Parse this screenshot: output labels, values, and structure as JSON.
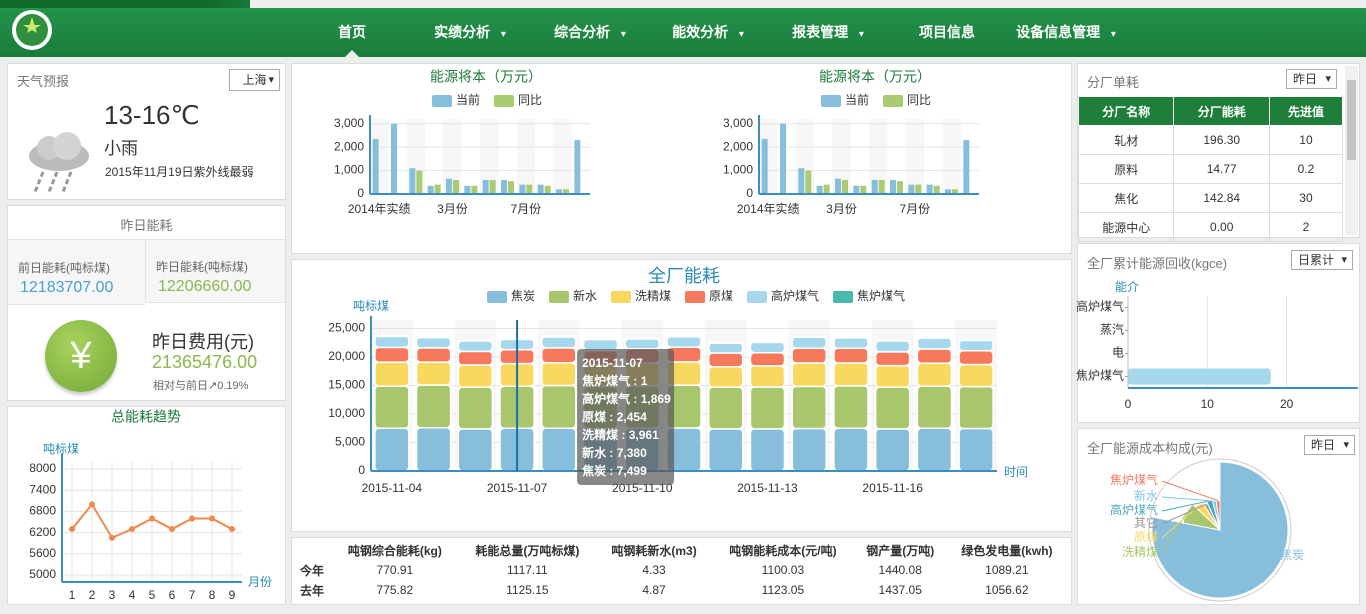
{
  "nav": {
    "items": [
      "首页",
      "实绩分析",
      "综合分析",
      "能效分析",
      "报表管理",
      "项目信息",
      "设备信息管理"
    ],
    "dropdown": [
      false,
      true,
      true,
      true,
      true,
      false,
      true
    ],
    "active": 0
  },
  "weather": {
    "title": "天气预报",
    "city": "上海",
    "temperature": "13-16℃",
    "condition": "小雨",
    "date": "2015年11月19日紫外线最弱"
  },
  "yesterday": {
    "title": "昨日能耗",
    "prev_label": "前日能耗(吨标煤)",
    "prev_value": "12183707.00",
    "curr_label": "昨日能耗(吨标煤)",
    "curr_value": "12206660.00",
    "icon": "¥",
    "cost_label": "昨日费用(元)",
    "cost_value": "21365476.00",
    "change": "相对与前日↗0.19%"
  },
  "summary_table": {
    "headers": [
      "吨钢综合能耗(kg)",
      "耗能总量(万吨标煤)",
      "吨钢耗新水(m3)",
      "吨钢能耗成本(元/吨)",
      "钢产量(万吨)",
      "绿色发电量(kwh)"
    ],
    "rows": [
      {
        "label": "今年",
        "cells": [
          "770.91",
          "1117.11",
          "4.33",
          "1100.03",
          "1440.08",
          "1089.21"
        ]
      },
      {
        "label": "去年",
        "cells": [
          "775.82",
          "1125.15",
          "4.87",
          "1123.05",
          "1437.05",
          "1056.62"
        ]
      }
    ]
  },
  "factory": {
    "title": "分厂单耗",
    "select": "昨日",
    "headers": [
      "分厂名称",
      "分厂能耗",
      "先进值"
    ],
    "rows": [
      [
        "轧材",
        "196.30",
        "10"
      ],
      [
        "原料",
        "14.77",
        "0.2"
      ],
      [
        "焦化",
        "142.84",
        "30"
      ],
      [
        "能源中心",
        "0.00",
        "2"
      ]
    ]
  },
  "recovery": {
    "title": "全厂累计能源回收(kgce)",
    "select": "日累计"
  },
  "cost_mix": {
    "title": "全厂能源成本构成(元)",
    "select": "昨日"
  },
  "chart_data": [
    {
      "type": "line",
      "title": "总能耗趋势",
      "y_label": "吨标煤",
      "x_label": "月份",
      "x": [
        1,
        2,
        3,
        4,
        5,
        6,
        7,
        8,
        9
      ],
      "values": [
        6300,
        7000,
        6050,
        6300,
        6600,
        6300,
        6600,
        6600,
        6300
      ],
      "color": "#ef8a4f",
      "xlim": [
        0.5,
        9.5
      ],
      "xticks": [
        1,
        2,
        3,
        4,
        5,
        6,
        7,
        8,
        9
      ],
      "ylim": [
        4800,
        8200
      ],
      "yticks": [
        5000,
        5600,
        6200,
        6800,
        7400,
        8000
      ],
      "grid": true
    },
    {
      "type": "bar",
      "title": "能源将本（万元）",
      "categories": [
        "2014年实绩",
        null,
        null,
        null,
        "3月份",
        null,
        null,
        null,
        "7月份",
        null,
        null,
        null
      ],
      "series": [
        {
          "name": "当前",
          "color": "#86bedb",
          "values": [
            2350,
            3000,
            1100,
            350,
            650,
            350,
            600,
            600,
            400,
            400,
            200,
            2300
          ]
        },
        {
          "name": "同比",
          "color": "#a9cc72",
          "values": [
            null,
            null,
            1000,
            400,
            600,
            350,
            600,
            550,
            400,
            350,
            200,
            null
          ]
        }
      ],
      "ylim": [
        0,
        3200
      ],
      "yticks": [
        0,
        {
          "value": 1000,
          "label": "1,000"
        },
        {
          "value": 2000,
          "label": "2,000"
        },
        {
          "value": 3000,
          "label": "3,000"
        }
      ],
      "grid": true
    },
    {
      "type": "bar",
      "title": "能源将本（万元）",
      "categories": [
        "2014年实绩",
        null,
        null,
        null,
        "3月份",
        null,
        null,
        null,
        "7月份",
        null,
        null,
        null
      ],
      "series": [
        {
          "name": "当前",
          "color": "#86bedb",
          "values": [
            2350,
            3000,
            1100,
            350,
            650,
            350,
            600,
            600,
            400,
            400,
            200,
            2300
          ]
        },
        {
          "name": "同比",
          "color": "#a9cc72",
          "values": [
            null,
            null,
            1000,
            400,
            600,
            350,
            600,
            550,
            400,
            350,
            200,
            null
          ]
        }
      ],
      "ylim": [
        0,
        3200
      ],
      "yticks": [
        0,
        {
          "value": 1000,
          "label": "1,000"
        },
        {
          "value": 2000,
          "label": "2,000"
        },
        {
          "value": 3000,
          "label": "3,000"
        }
      ],
      "grid": true
    },
    {
      "type": "bar",
      "stacked": true,
      "title": "全厂能耗",
      "y_label": "吨标煤",
      "x_label": "时间",
      "categories": [
        "2015-11-04",
        null,
        null,
        "2015-11-07",
        null,
        null,
        "2015-11-10",
        null,
        null,
        "2015-11-13",
        null,
        null,
        "2015-11-16",
        null,
        null
      ],
      "series": [
        {
          "name": "焦炭",
          "color": "#86bedb",
          "values": [
            7500,
            7600,
            7400,
            7499,
            7500,
            7450,
            7500,
            7550,
            7400,
            7400,
            7450,
            7500,
            7400,
            7500,
            7450
          ]
        },
        {
          "name": "新水",
          "color": "#a8c66c",
          "values": [
            7400,
            7500,
            7300,
            7380,
            7500,
            7400,
            7450,
            7500,
            7300,
            7350,
            7400,
            7450,
            7300,
            7400,
            7350
          ]
        },
        {
          "name": "洗精煤",
          "color": "#f9d860",
          "values": [
            4200,
            4000,
            3900,
            3961,
            4000,
            3800,
            4000,
            4100,
            3600,
            3700,
            4100,
            4000,
            3800,
            4000,
            3900
          ]
        },
        {
          "name": "原煤",
          "color": "#f7795d",
          "values": [
            2600,
            2500,
            2400,
            2454,
            2600,
            2500,
            2500,
            2600,
            2400,
            2300,
            2600,
            2600,
            2400,
            2500,
            2400
          ]
        },
        {
          "name": "高炉煤气",
          "color": "#a6d8ed",
          "values": [
            2000,
            1900,
            1900,
            1869,
            2000,
            2000,
            1800,
            1900,
            1800,
            1900,
            2000,
            1900,
            2000,
            2000,
            1900
          ]
        },
        {
          "name": "焦炉煤气",
          "color": "#4bb9a9",
          "values": [
            1,
            1,
            1,
            1,
            1,
            1,
            1,
            1,
            1,
            1,
            1,
            1,
            1,
            1,
            1
          ]
        }
      ],
      "ylim": [
        0,
        26500
      ],
      "yticks": [
        0,
        {
          "value": 5000,
          "label": "5,000"
        },
        {
          "value": 10000,
          "label": "10,000"
        },
        {
          "value": 15000,
          "label": "15,000"
        },
        {
          "value": 20000,
          "label": "20,000"
        },
        {
          "value": 25000,
          "label": "25,000"
        }
      ],
      "grid": true,
      "tooltip": {
        "title": "2015-11-07",
        "lines": [
          "焦炉煤气 : 1",
          "高炉煤气 : 1,869",
          "原煤 : 2,454",
          "洗精煤 : 3,961",
          "新水 : 7,380",
          "焦炭 : 7,499"
        ]
      }
    },
    {
      "type": "hbar",
      "y_label": "能介",
      "categories": [
        "焦炉煤气",
        "电",
        "蒸汽",
        "高炉煤气"
      ],
      "values": [
        18,
        0,
        0,
        0
      ],
      "color": "#a6d8ed",
      "xlim": [
        0,
        29
      ],
      "xticks": [
        0,
        10,
        20
      ],
      "grid": true
    },
    {
      "type": "pie",
      "categories": [
        "焦炭",
        "洗精煤",
        "原煤",
        "其它",
        "高炉煤气",
        "新水",
        "焦炉煤气"
      ],
      "values": [
        78,
        9,
        4,
        2,
        3,
        2,
        2
      ],
      "colors": [
        "#86bedb",
        "#a8c66c",
        "#f9d860",
        "#999999",
        "#4ba6b9",
        "#7ec8e8",
        "#f7795d"
      ]
    }
  ]
}
